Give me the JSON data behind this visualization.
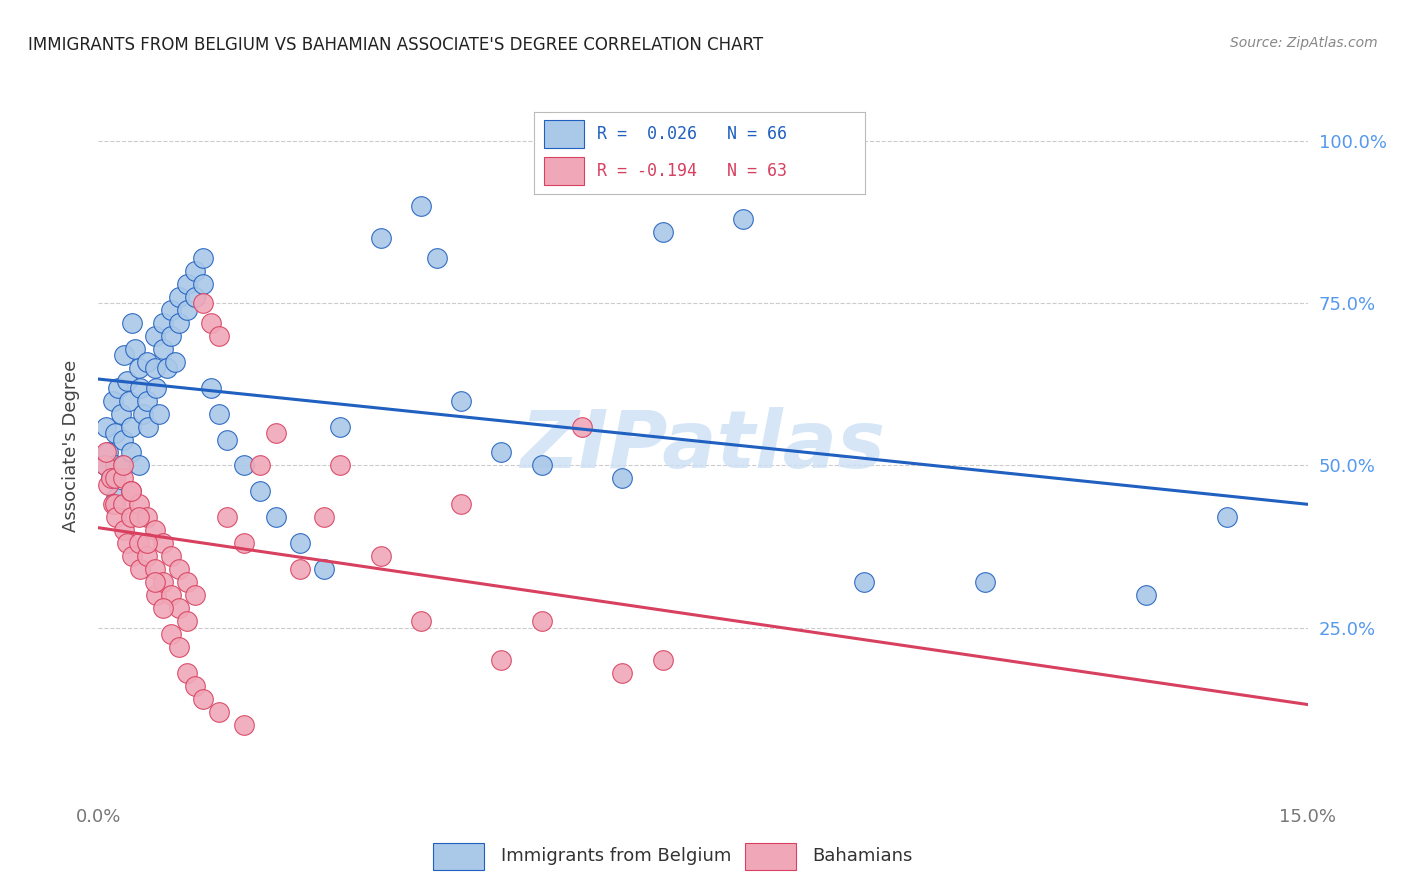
{
  "title": "IMMIGRANTS FROM BELGIUM VS BAHAMIAN ASSOCIATE'S DEGREE CORRELATION CHART",
  "source": "Source: ZipAtlas.com",
  "ylabel": "Associate's Degree",
  "ytick_labels": [
    "100.0%",
    "75.0%",
    "50.0%",
    "25.0%"
  ],
  "ytick_values": [
    1.0,
    0.75,
    0.5,
    0.25
  ],
  "xlim": [
    0.0,
    0.15
  ],
  "ylim": [
    -0.02,
    1.08
  ],
  "watermark": "ZIPatlas",
  "color_blue": "#aac8e8",
  "color_pink": "#f0a8b8",
  "line_blue": "#2060c0",
  "line_pink": "#d84060",
  "blue_x": [
    0.0008,
    0.001,
    0.0012,
    0.0015,
    0.0018,
    0.002,
    0.002,
    0.0022,
    0.0024,
    0.0028,
    0.003,
    0.003,
    0.0032,
    0.0035,
    0.0038,
    0.004,
    0.004,
    0.0042,
    0.0045,
    0.005,
    0.005,
    0.0052,
    0.0055,
    0.006,
    0.006,
    0.0062,
    0.007,
    0.007,
    0.0072,
    0.0075,
    0.008,
    0.008,
    0.0085,
    0.009,
    0.009,
    0.0095,
    0.01,
    0.01,
    0.011,
    0.011,
    0.012,
    0.012,
    0.013,
    0.013,
    0.014,
    0.015,
    0.016,
    0.018,
    0.02,
    0.022,
    0.025,
    0.028,
    0.03,
    0.035,
    0.04,
    0.042,
    0.045,
    0.05,
    0.055,
    0.065,
    0.07,
    0.08,
    0.095,
    0.11,
    0.14,
    0.13
  ],
  "blue_y": [
    0.5,
    0.56,
    0.52,
    0.48,
    0.6,
    0.55,
    0.5,
    0.45,
    0.62,
    0.58,
    0.54,
    0.5,
    0.67,
    0.63,
    0.6,
    0.56,
    0.52,
    0.72,
    0.68,
    0.65,
    0.5,
    0.62,
    0.58,
    0.66,
    0.6,
    0.56,
    0.7,
    0.65,
    0.62,
    0.58,
    0.72,
    0.68,
    0.65,
    0.74,
    0.7,
    0.66,
    0.76,
    0.72,
    0.78,
    0.74,
    0.8,
    0.76,
    0.82,
    0.78,
    0.62,
    0.58,
    0.54,
    0.5,
    0.46,
    0.42,
    0.38,
    0.34,
    0.56,
    0.85,
    0.9,
    0.82,
    0.6,
    0.52,
    0.5,
    0.48,
    0.86,
    0.88,
    0.32,
    0.32,
    0.42,
    0.3
  ],
  "pink_x": [
    0.0008,
    0.001,
    0.0012,
    0.0015,
    0.0018,
    0.002,
    0.002,
    0.0022,
    0.003,
    0.003,
    0.0032,
    0.0035,
    0.004,
    0.004,
    0.0042,
    0.005,
    0.005,
    0.0052,
    0.006,
    0.006,
    0.007,
    0.007,
    0.0072,
    0.008,
    0.008,
    0.009,
    0.009,
    0.01,
    0.01,
    0.011,
    0.011,
    0.012,
    0.013,
    0.014,
    0.015,
    0.016,
    0.018,
    0.02,
    0.022,
    0.025,
    0.028,
    0.03,
    0.035,
    0.04,
    0.045,
    0.05,
    0.055,
    0.06,
    0.065,
    0.003,
    0.004,
    0.005,
    0.006,
    0.007,
    0.008,
    0.009,
    0.01,
    0.011,
    0.012,
    0.013,
    0.015,
    0.018,
    0.07
  ],
  "pink_y": [
    0.5,
    0.52,
    0.47,
    0.48,
    0.44,
    0.48,
    0.44,
    0.42,
    0.48,
    0.44,
    0.4,
    0.38,
    0.46,
    0.42,
    0.36,
    0.44,
    0.38,
    0.34,
    0.42,
    0.36,
    0.4,
    0.34,
    0.3,
    0.38,
    0.32,
    0.36,
    0.3,
    0.34,
    0.28,
    0.32,
    0.26,
    0.3,
    0.75,
    0.72,
    0.7,
    0.42,
    0.38,
    0.5,
    0.55,
    0.34,
    0.42,
    0.5,
    0.36,
    0.26,
    0.44,
    0.2,
    0.26,
    0.56,
    0.18,
    0.5,
    0.46,
    0.42,
    0.38,
    0.32,
    0.28,
    0.24,
    0.22,
    0.18,
    0.16,
    0.14,
    0.12,
    0.1,
    0.2
  ]
}
